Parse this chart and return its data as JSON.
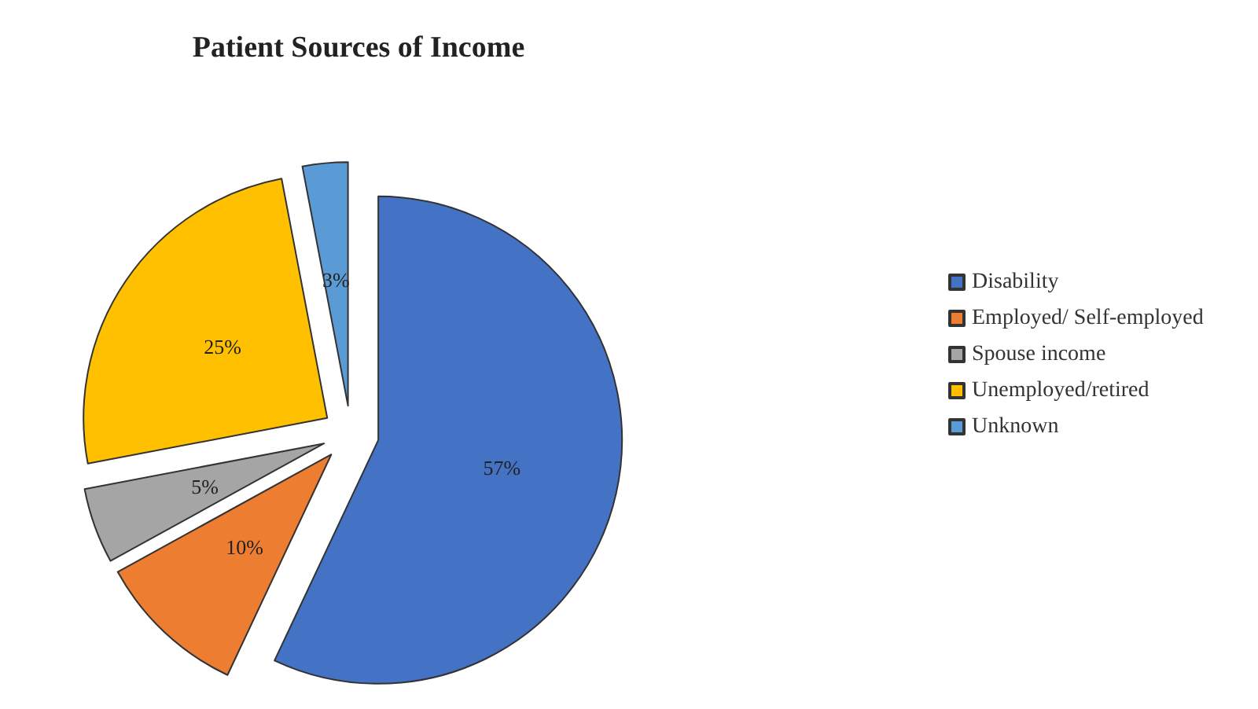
{
  "chart_data": {
    "type": "pie",
    "title": "Patient Sources of Income",
    "categories": [
      "Disability",
      "Employed/ Self-employed",
      "Spouse income",
      "Unemployed/retired",
      "Unknown"
    ],
    "values": [
      57,
      10,
      5,
      25,
      3
    ],
    "value_labels": [
      "57%",
      "10%",
      "5%",
      "25%",
      "3%"
    ],
    "colors": [
      "#4472c4",
      "#ed7d31",
      "#a5a5a5",
      "#ffc000",
      "#5b9bd5"
    ],
    "legend": "right"
  }
}
